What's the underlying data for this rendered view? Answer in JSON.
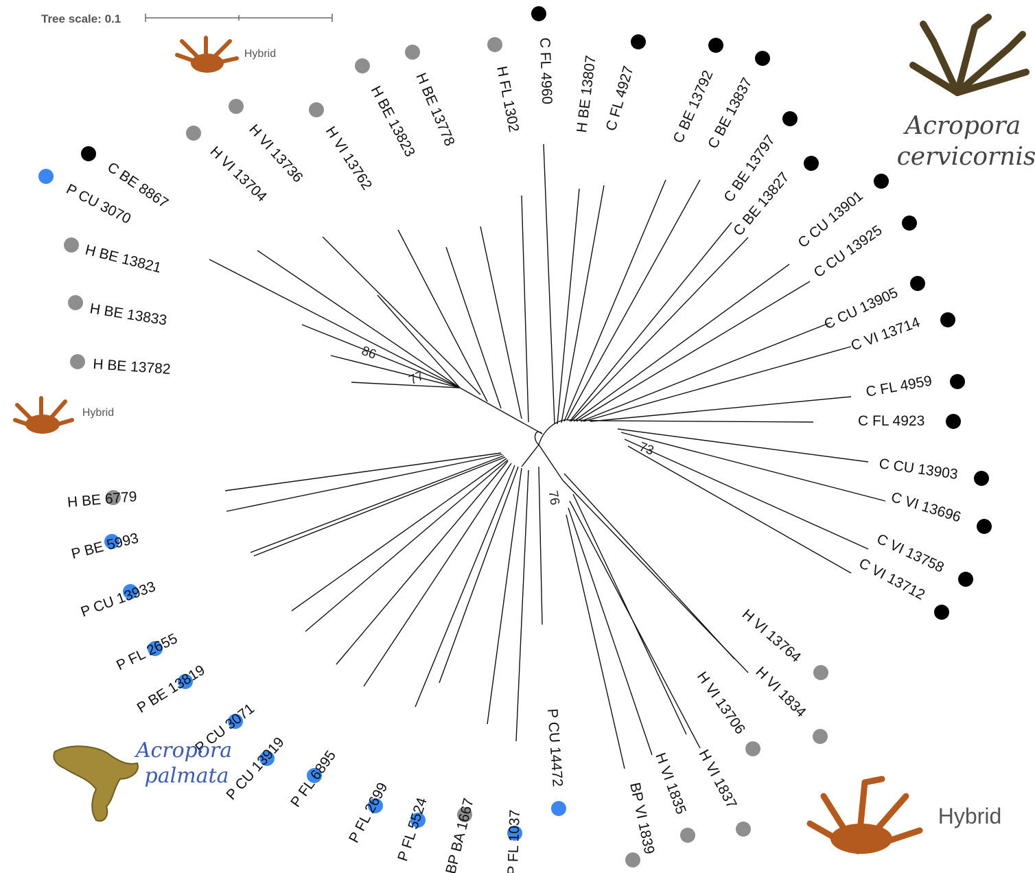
{
  "scale": {
    "label": "Tree scale: 0.1"
  },
  "groups": {
    "cervicornis": {
      "line1": "Acropora",
      "line2": "cervicornis",
      "color": "#000000"
    },
    "palmata": {
      "line1": "Acropora",
      "line2": "palmata",
      "color": "#3a86f5"
    },
    "hybrid_big": "Hybrid",
    "hybrid_top": "Hybrid",
    "hybrid_left": "Hybrid",
    "hybrid_color": "#8e8e8e"
  },
  "bootstrap": [
    "86",
    "77",
    "73",
    "76"
  ],
  "taxa": [
    {
      "label": "C FL 4960",
      "type": "C"
    },
    {
      "label": "H BE 13807",
      "type": "H"
    },
    {
      "label": "C FL 4927",
      "type": "C"
    },
    {
      "label": "C BE 13792",
      "type": "C"
    },
    {
      "label": "C BE 13837",
      "type": "C"
    },
    {
      "label": "C BE 13797",
      "type": "C"
    },
    {
      "label": "C BE 13827",
      "type": "C"
    },
    {
      "label": "C CU 13901",
      "type": "C"
    },
    {
      "label": "C CU 13925",
      "type": "C"
    },
    {
      "label": "C CU 13905",
      "type": "C"
    },
    {
      "label": "C VI 13714",
      "type": "C"
    },
    {
      "label": "C FL 4959",
      "type": "C"
    },
    {
      "label": "C FL 4923",
      "type": "C"
    },
    {
      "label": "C CU 13903",
      "type": "C"
    },
    {
      "label": "C VI 13696",
      "type": "C"
    },
    {
      "label": "C VI 13758",
      "type": "C"
    },
    {
      "label": "C VI 13712",
      "type": "C"
    },
    {
      "label": "H VI 13764",
      "type": "H"
    },
    {
      "label": "H VI 1834",
      "type": "H"
    },
    {
      "label": "H VI 13706",
      "type": "H"
    },
    {
      "label": "H VI 1837",
      "type": "H"
    },
    {
      "label": "H VI 1835",
      "type": "H"
    },
    {
      "label": "BP VI 1839",
      "type": "H"
    },
    {
      "label": "P CU 14472",
      "type": "P"
    },
    {
      "label": "P FL 1037",
      "type": "P"
    },
    {
      "label": "BP BA 1667",
      "type": "H"
    },
    {
      "label": "P FL 5524",
      "type": "P"
    },
    {
      "label": "P FL 2699",
      "type": "P"
    },
    {
      "label": "P FL 6895",
      "type": "P"
    },
    {
      "label": "P CU 13919",
      "type": "P"
    },
    {
      "label": "P CU 3071",
      "type": "P"
    },
    {
      "label": "P BE 13819",
      "type": "P"
    },
    {
      "label": "P FL 2655",
      "type": "P"
    },
    {
      "label": "P CU 13933",
      "type": "P"
    },
    {
      "label": "P BE 5993",
      "type": "P"
    },
    {
      "label": "H BE 6779",
      "type": "H"
    },
    {
      "label": "H BE 13782",
      "type": "H"
    },
    {
      "label": "H BE 13833",
      "type": "H"
    },
    {
      "label": "H BE 13821",
      "type": "H"
    },
    {
      "label": "P CU 3070",
      "type": "P"
    },
    {
      "label": "C BE 8867",
      "type": "C"
    },
    {
      "label": "H VI 13704",
      "type": "H"
    },
    {
      "label": "H VI 13736",
      "type": "H"
    },
    {
      "label": "H VI 13762",
      "type": "H"
    },
    {
      "label": "H BE 13823",
      "type": "H"
    },
    {
      "label": "H BE 13778",
      "type": "H"
    },
    {
      "label": "H FL 1302",
      "type": "H"
    }
  ]
}
